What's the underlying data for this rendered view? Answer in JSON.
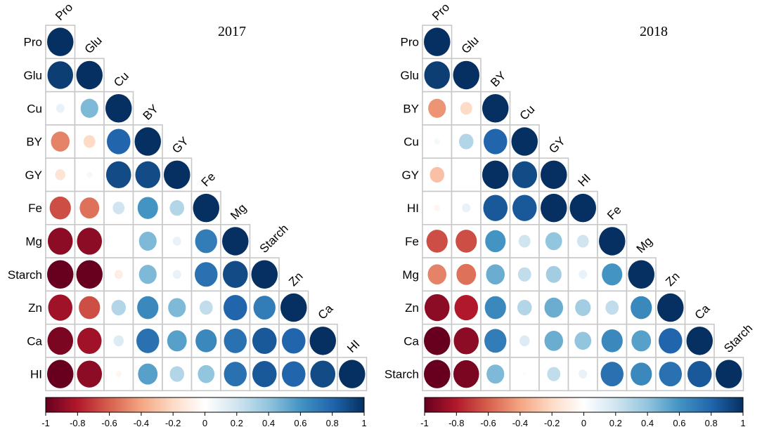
{
  "chart_data": [
    {
      "type": "heatmap",
      "title": "2017",
      "variables": [
        "Pro",
        "Glu",
        "Cu",
        "BY",
        "GY",
        "Fe",
        "Mg",
        "Starch",
        "Zn",
        "Ca",
        "HI"
      ],
      "lower_triangle": [
        [
          1.0
        ],
        [
          0.95,
          1.0
        ],
        [
          0.1,
          0.45,
          1.0
        ],
        [
          -0.5,
          -0.2,
          0.8,
          1.0
        ],
        [
          -0.15,
          0.05,
          0.9,
          0.9,
          1.0
        ],
        [
          -0.65,
          -0.55,
          0.2,
          0.6,
          0.3,
          1.0
        ],
        [
          -0.9,
          -0.9,
          0.0,
          0.45,
          0.1,
          0.7,
          1.0
        ],
        [
          -1.0,
          -1.0,
          -0.1,
          0.45,
          0.1,
          0.75,
          0.9,
          1.0
        ],
        [
          -0.85,
          -0.65,
          0.3,
          0.65,
          0.45,
          0.25,
          0.8,
          0.7,
          1.0
        ],
        [
          -0.95,
          -0.85,
          0.15,
          0.75,
          0.55,
          0.65,
          0.75,
          0.85,
          0.8,
          1.0
        ],
        [
          -1.0,
          -0.9,
          -0.05,
          0.55,
          0.3,
          0.4,
          0.75,
          0.85,
          0.8,
          0.9,
          1.0
        ]
      ],
      "colorbar": {
        "min": -1,
        "max": 1,
        "ticks": [
          "-1",
          "-0.8",
          "-0.6",
          "-0.4",
          "-0.2",
          "0",
          "0.2",
          "0.4",
          "0.6",
          "0.8",
          "1"
        ]
      }
    },
    {
      "type": "heatmap",
      "title": "2018",
      "variables": [
        "Pro",
        "Glu",
        "BY",
        "Cu",
        "GY",
        "HI",
        "Fe",
        "Mg",
        "Zn",
        "Ca",
        "Starch"
      ],
      "lower_triangle": [
        [
          1.0
        ],
        [
          0.95,
          1.0
        ],
        [
          -0.45,
          -0.2,
          1.0
        ],
        [
          0.05,
          0.3,
          0.8,
          1.0
        ],
        [
          -0.3,
          0.0,
          1.0,
          0.9,
          1.0
        ],
        [
          -0.05,
          0.1,
          0.85,
          0.85,
          1.0,
          1.0
        ],
        [
          -0.65,
          -0.65,
          0.6,
          0.2,
          0.4,
          0.2,
          1.0
        ],
        [
          -0.5,
          -0.55,
          0.5,
          0.25,
          0.35,
          0.1,
          0.6,
          1.0
        ],
        [
          -0.9,
          -0.8,
          0.65,
          0.3,
          0.5,
          0.35,
          0.25,
          0.65,
          1.0
        ],
        [
          -1.0,
          -0.9,
          0.7,
          0.15,
          0.5,
          0.4,
          0.65,
          0.55,
          0.8,
          1.0
        ],
        [
          -1.0,
          -0.95,
          0.45,
          -0.02,
          0.25,
          0.1,
          0.75,
          0.65,
          0.75,
          0.85,
          1.0
        ]
      ],
      "colorbar": {
        "min": -1,
        "max": 1,
        "ticks": [
          "-1",
          "-0.8",
          "-0.6",
          "-0.4",
          "-0.2",
          "0",
          "0.2",
          "0.4",
          "0.6",
          "0.8",
          "1"
        ]
      }
    }
  ]
}
